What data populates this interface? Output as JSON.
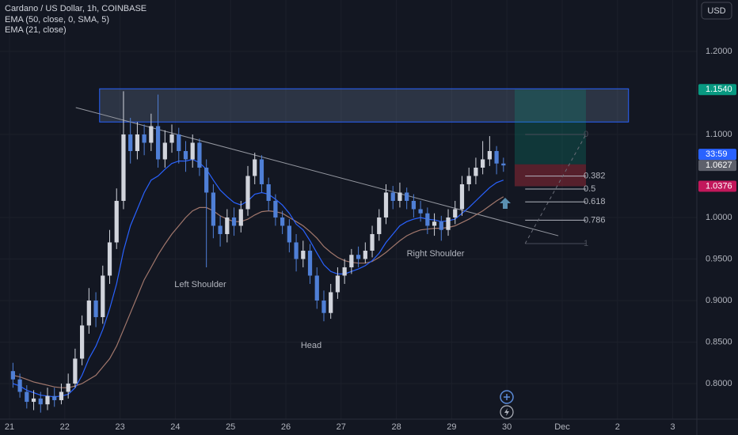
{
  "chart_data": {
    "type": "candlestick",
    "title": "Cardano / US Dollar, 1h, COINBASE",
    "currency": "USD",
    "x": [
      0.0625,
      0.1875,
      0.3125,
      0.4375,
      0.5625,
      0.6875,
      0.8125,
      0.9375,
      1.0625,
      1.1875,
      1.3125,
      1.4375,
      1.5625,
      1.6875,
      1.8125,
      1.9375,
      2.0625,
      2.1875,
      2.3125,
      2.4375,
      2.5625,
      2.6875,
      2.8125,
      2.9375,
      3.0625,
      3.1875,
      3.3125,
      3.4375,
      3.5625,
      3.6875,
      3.8125,
      3.9375,
      4.0625,
      4.1875,
      4.3125,
      4.4375,
      4.5625,
      4.6875,
      4.8125,
      4.9375,
      5.0625,
      5.1875,
      5.3125,
      5.4375,
      5.5625,
      5.6875,
      5.8125,
      5.9375,
      6.0625,
      6.1875,
      6.3125,
      6.4375,
      6.5625,
      6.6875,
      6.8125,
      6.9375,
      7.0625,
      7.1875,
      7.3125,
      7.4375,
      7.5625,
      7.6875,
      7.8125,
      7.9375,
      8.0625,
      8.1875,
      8.3125,
      8.4375,
      8.5625,
      8.6875,
      8.8125,
      8.9375
    ],
    "open": [
      0.815,
      0.805,
      0.79,
      0.778,
      0.782,
      0.775,
      0.785,
      0.78,
      0.79,
      0.8,
      0.83,
      0.87,
      0.9,
      0.88,
      0.93,
      0.97,
      1.02,
      1.1,
      1.08,
      1.1,
      1.09,
      1.11,
      1.07,
      1.09,
      1.1,
      1.08,
      1.07,
      1.09,
      1.06,
      1.03,
      0.99,
      0.98,
      1.0,
      0.99,
      1.01,
      1.05,
      1.07,
      1.04,
      1.02,
      1.0,
      0.99,
      0.97,
      0.95,
      0.96,
      0.93,
      0.9,
      0.885,
      0.91,
      0.93,
      0.94,
      0.955,
      0.95,
      0.96,
      0.98,
      1.0,
      1.03,
      1.02,
      1.03,
      1.02,
      1.01,
      1.005,
      0.99,
      0.995,
      0.985,
      1.0,
      1.01,
      1.04,
      1.05,
      1.06,
      1.07,
      1.08,
      1.065
    ],
    "high": [
      0.825,
      0.812,
      0.798,
      0.792,
      0.79,
      0.795,
      0.795,
      0.8,
      0.812,
      0.842,
      0.882,
      0.915,
      0.91,
      0.942,
      0.985,
      1.035,
      1.152,
      1.12,
      1.115,
      1.112,
      1.125,
      1.148,
      1.105,
      1.112,
      1.108,
      1.092,
      1.1,
      1.095,
      1.07,
      1.04,
      1.002,
      1.01,
      1.012,
      1.02,
      1.062,
      1.078,
      1.075,
      1.048,
      1.028,
      1.008,
      0.998,
      0.98,
      0.972,
      0.968,
      0.94,
      0.912,
      0.92,
      0.94,
      0.95,
      0.962,
      0.965,
      0.97,
      0.99,
      1.01,
      1.04,
      1.038,
      1.042,
      1.036,
      1.028,
      1.02,
      1.012,
      1.005,
      1.002,
      1.01,
      1.02,
      1.05,
      1.06,
      1.072,
      1.092,
      1.098,
      1.086,
      1.072
    ],
    "low": [
      0.795,
      0.783,
      0.77,
      0.768,
      0.765,
      0.768,
      0.772,
      0.775,
      0.782,
      0.795,
      0.822,
      0.86,
      0.868,
      0.872,
      0.92,
      0.962,
      1.01,
      1.065,
      1.07,
      1.075,
      1.08,
      1.06,
      1.06,
      1.078,
      1.065,
      1.055,
      1.06,
      1.05,
      0.94,
      0.975,
      0.965,
      0.97,
      0.978,
      0.982,
      1.002,
      1.04,
      1.03,
      1.008,
      0.99,
      0.98,
      0.958,
      0.935,
      0.94,
      0.92,
      0.89,
      0.875,
      0.878,
      0.902,
      0.92,
      0.932,
      0.94,
      0.945,
      0.952,
      0.972,
      0.992,
      1.01,
      1.012,
      1.01,
      1.0,
      0.995,
      0.98,
      0.978,
      0.972,
      0.978,
      0.992,
      1.002,
      1.032,
      1.04,
      1.052,
      1.062,
      1.052,
      1.055
    ],
    "close": [
      0.805,
      0.79,
      0.778,
      0.782,
      0.775,
      0.785,
      0.78,
      0.79,
      0.8,
      0.83,
      0.87,
      0.9,
      0.88,
      0.93,
      0.97,
      1.02,
      1.1,
      1.08,
      1.1,
      1.09,
      1.11,
      1.07,
      1.09,
      1.1,
      1.08,
      1.07,
      1.09,
      1.06,
      1.03,
      0.99,
      0.98,
      1.0,
      0.99,
      1.01,
      1.05,
      1.07,
      1.04,
      1.02,
      1.0,
      0.99,
      0.97,
      0.95,
      0.96,
      0.93,
      0.9,
      0.885,
      0.91,
      0.93,
      0.94,
      0.955,
      0.95,
      0.96,
      0.98,
      1.0,
      1.03,
      1.02,
      1.03,
      1.02,
      1.01,
      1.005,
      0.99,
      0.995,
      0.985,
      1.0,
      1.01,
      1.04,
      1.05,
      1.06,
      1.07,
      1.08,
      1.065,
      1.0627
    ],
    "up_color": "#d1d4dc",
    "down_color": "#4f7fd6",
    "series": [
      {
        "name": "EMA (50, close, 0, SMA, 5)",
        "color": "#a1776c",
        "values": [
          0.81,
          0.808,
          0.805,
          0.802,
          0.8,
          0.798,
          0.796,
          0.795,
          0.795,
          0.797,
          0.8,
          0.805,
          0.81,
          0.82,
          0.83,
          0.845,
          0.865,
          0.885,
          0.905,
          0.925,
          0.94,
          0.955,
          0.968,
          0.98,
          0.99,
          1.0,
          1.008,
          1.012,
          1.012,
          1.008,
          1.002,
          0.998,
          0.995,
          0.995,
          0.998,
          1.003,
          1.007,
          1.008,
          1.007,
          1.005,
          1.0,
          0.995,
          0.99,
          0.983,
          0.975,
          0.965,
          0.958,
          0.952,
          0.948,
          0.946,
          0.945,
          0.945,
          0.947,
          0.952,
          0.958,
          0.965,
          0.972,
          0.978,
          0.982,
          0.985,
          0.986,
          0.987,
          0.987,
          0.988,
          0.99,
          0.994,
          0.998,
          1.003,
          1.008,
          1.014,
          1.02,
          1.025
        ]
      },
      {
        "name": "EMA (21, close)",
        "color": "#2962ff",
        "values": [
          0.8,
          0.797,
          0.792,
          0.789,
          0.786,
          0.785,
          0.784,
          0.785,
          0.787,
          0.795,
          0.81,
          0.83,
          0.845,
          0.865,
          0.89,
          0.92,
          0.96,
          0.99,
          1.01,
          1.03,
          1.045,
          1.05,
          1.058,
          1.065,
          1.068,
          1.068,
          1.07,
          1.066,
          1.058,
          1.045,
          1.033,
          1.025,
          1.018,
          1.015,
          1.02,
          1.028,
          1.03,
          1.028,
          1.022,
          1.015,
          1.005,
          0.992,
          0.985,
          0.972,
          0.957,
          0.943,
          0.935,
          0.932,
          0.932,
          0.935,
          0.938,
          0.942,
          0.948,
          0.957,
          0.97,
          0.98,
          0.99,
          0.995,
          0.998,
          1.0,
          0.998,
          0.997,
          0.995,
          0.996,
          0.998,
          1.005,
          1.012,
          1.02,
          1.028,
          1.036,
          1.042,
          1.045
        ]
      }
    ],
    "xlim": [
      -0.172,
      12.436
    ],
    "ylim": [
      1.2619,
      0.7571
    ],
    "xticks": [
      {
        "value": 0,
        "label": "21"
      },
      {
        "value": 1,
        "label": "22"
      },
      {
        "value": 2,
        "label": "23"
      },
      {
        "value": 3,
        "label": "24"
      },
      {
        "value": 4,
        "label": "25"
      },
      {
        "value": 5,
        "label": "26"
      },
      {
        "value": 6,
        "label": "27"
      },
      {
        "value": 7,
        "label": "28"
      },
      {
        "value": 8,
        "label": "29"
      },
      {
        "value": 9,
        "label": "30"
      },
      {
        "value": 10,
        "label": "Dec"
      },
      {
        "value": 11,
        "label": "2"
      },
      {
        "value": 12,
        "label": "3"
      }
    ],
    "yticks": [
      {
        "value": 1.2,
        "label": "1.2000"
      },
      {
        "value": 1.1,
        "label": "1.1000"
      },
      {
        "value": 1.0,
        "label": "1.0000"
      },
      {
        "value": 0.95,
        "label": "0.9500"
      },
      {
        "value": 0.9,
        "label": "0.9000"
      },
      {
        "value": 0.85,
        "label": "0.8500"
      },
      {
        "value": 0.8,
        "label": "0.8000"
      }
    ],
    "grid": true,
    "price_labels": [
      {
        "value": 1.154,
        "label": "1.1540",
        "color": "#089981"
      },
      {
        "value": 1.0627,
        "label": "1.0627",
        "color": "#5d606b"
      },
      {
        "value": 1.0376,
        "label": "1.0376",
        "color": "#c2185b"
      }
    ],
    "countdown": "33:59",
    "resistance_zone": {
      "x": [
        1.63,
        11.2
      ],
      "y": [
        1.115,
        1.155
      ]
    },
    "trendline": {
      "x": [
        1.2,
        9.93
      ],
      "y": [
        1.1324,
        0.978
      ]
    },
    "position": {
      "x": [
        9.14,
        10.43
      ],
      "target": 1.154,
      "entry": 1.064,
      "stop": 1.0376
    },
    "fibonacci": {
      "x": [
        9.33,
        10.43
      ],
      "high": 1.1,
      "low": 0.9686,
      "levels": [
        0,
        0.382,
        0.5,
        0.618,
        0.786,
        1
      ]
    },
    "annotations": [
      "Left Shoulder",
      "Head",
      "Right Shoulder"
    ]
  }
}
